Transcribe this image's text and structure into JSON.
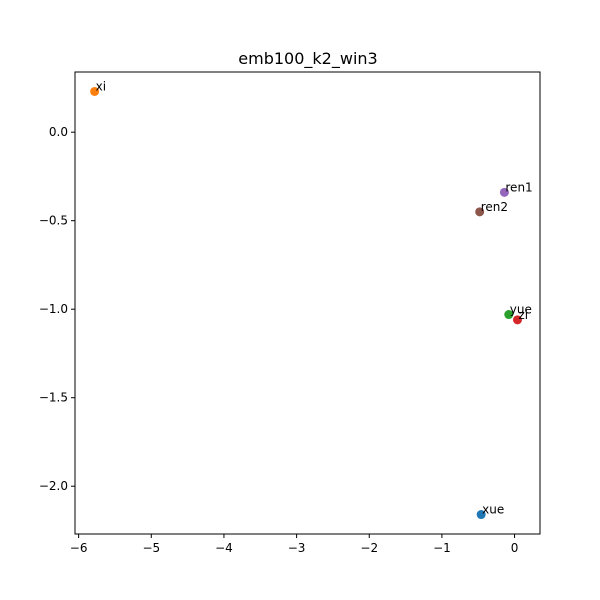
{
  "chart_data": {
    "type": "scatter",
    "title": "emb100_k2_win3",
    "xlabel": "",
    "ylabel": "",
    "xlim": [
      -6.05,
      0.35
    ],
    "ylim": [
      -2.27,
      0.34
    ],
    "grid": false,
    "xticks": [
      -6,
      -5,
      -4,
      -3,
      -2,
      -1,
      0
    ],
    "yticks": [
      0.0,
      -0.5,
      -1.0,
      -1.5,
      -2.0
    ],
    "xtick_labels": [
      "−6",
      "−5",
      "−4",
      "−3",
      "−2",
      "−1",
      "0"
    ],
    "ytick_labels": [
      "0.0",
      "−0.5",
      "−1.0",
      "−1.5",
      "−2.0"
    ],
    "points": [
      {
        "label": "xue",
        "x": -0.46,
        "y": -2.16,
        "color": "#1f77b4"
      },
      {
        "label": "xi",
        "x": -5.78,
        "y": 0.23,
        "color": "#ff7f0e"
      },
      {
        "label": "yue",
        "x": -0.08,
        "y": -1.03,
        "color": "#2ca02c"
      },
      {
        "label": "zi",
        "x": 0.04,
        "y": -1.06,
        "color": "#d62728"
      },
      {
        "label": "ren1",
        "x": -0.14,
        "y": -0.34,
        "color": "#9467bd"
      },
      {
        "label": "ren2",
        "x": -0.48,
        "y": -0.45,
        "color": "#8c564b"
      }
    ]
  }
}
